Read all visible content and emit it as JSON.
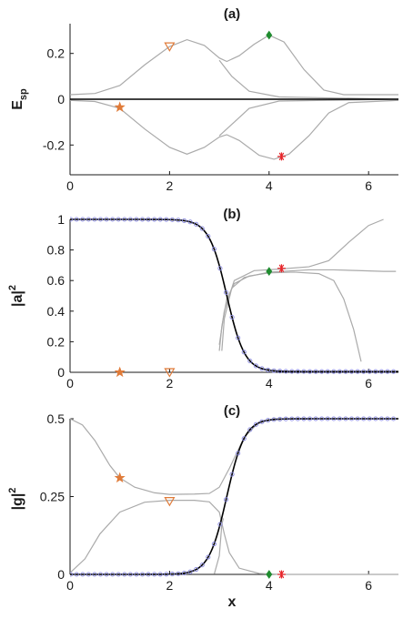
{
  "chart_data": [
    {
      "panel": "a",
      "type": "line",
      "title": "(a)",
      "xlabel": "",
      "ylabel": "E_sp",
      "ylabel_main": "E",
      "ylabel_sub": "sp",
      "xlim": [
        0,
        6.6
      ],
      "ylim": [
        -0.33,
        0.33
      ],
      "xticks": [
        0,
        2,
        4,
        6
      ],
      "xtick_labels": [
        "0",
        "2",
        "4",
        "6"
      ],
      "yticks": [
        0.2,
        0,
        -0.2
      ],
      "ytick_labels": [
        "0.2",
        "0",
        "-0.2"
      ],
      "series": [
        {
          "color": "#aaaaaa",
          "width": 1.2,
          "points": [
            [
              0,
              0.02
            ],
            [
              0.5,
              0.025
            ],
            [
              1,
              0.06
            ],
            [
              1.5,
              0.15
            ],
            [
              2,
              0.23
            ],
            [
              2.35,
              0.26
            ],
            [
              2.7,
              0.235
            ],
            [
              3,
              0.18
            ],
            [
              3.15,
              0.165
            ],
            [
              3.4,
              0.19
            ],
            [
              3.7,
              0.24
            ],
            [
              4,
              0.28
            ],
            [
              4.3,
              0.25
            ],
            [
              4.7,
              0.13
            ],
            [
              5.1,
              0.04
            ],
            [
              5.5,
              0.02
            ],
            [
              6.6,
              0.02
            ]
          ]
        },
        {
          "color": "#aaaaaa",
          "width": 1.2,
          "points": [
            [
              0,
              -0.005
            ],
            [
              0.5,
              -0.01
            ],
            [
              1,
              -0.04
            ],
            [
              1.5,
              -0.13
            ],
            [
              2,
              -0.21
            ],
            [
              2.35,
              -0.24
            ],
            [
              2.7,
              -0.21
            ],
            [
              3,
              -0.165
            ],
            [
              3.15,
              -0.155
            ],
            [
              3.4,
              -0.18
            ],
            [
              3.8,
              -0.245
            ],
            [
              4.1,
              -0.262
            ],
            [
              4.4,
              -0.24
            ],
            [
              4.8,
              -0.16
            ],
            [
              5.2,
              -0.06
            ],
            [
              5.6,
              -0.015
            ],
            [
              6.6,
              -0.005
            ]
          ]
        },
        {
          "color": "#aaaaaa",
          "width": 1.2,
          "points": [
            [
              3,
              -0.16
            ],
            [
              3.3,
              -0.1
            ],
            [
              3.6,
              -0.04
            ],
            [
              4.2,
              -0.008
            ],
            [
              6.6,
              0
            ]
          ]
        },
        {
          "color": "#aaaaaa",
          "width": 1.2,
          "points": [
            [
              3,
              0.17
            ],
            [
              3.25,
              0.1
            ],
            [
              3.6,
              0.035
            ],
            [
              4.2,
              0.01
            ],
            [
              6.6,
              0
            ]
          ]
        },
        {
          "color": "#000000",
          "width": 1.6,
          "points": [
            [
              0,
              0
            ],
            [
              6.6,
              0
            ]
          ]
        }
      ],
      "markers": [
        {
          "symbol": "star",
          "x": 1,
          "y": -0.035,
          "color": "#e07b39",
          "size": 10
        },
        {
          "symbol": "triangle-down",
          "x": 2,
          "y": 0.23,
          "color": "#e07b39",
          "size": 10
        },
        {
          "symbol": "diamond",
          "x": 4,
          "y": 0.28,
          "color": "#1f8c2f",
          "size": 8
        },
        {
          "symbol": "asterisk",
          "x": 4.25,
          "y": -0.25,
          "color": "#e8252a",
          "size": 9
        }
      ]
    },
    {
      "panel": "b",
      "type": "line",
      "title": "(b)",
      "xlabel": "",
      "ylabel": "|a|^2",
      "ylabel_main": "|a|",
      "ylabel_sup": "2",
      "xlim": [
        0,
        6.6
      ],
      "ylim": [
        0,
        1
      ],
      "xticks": [
        0,
        2,
        4,
        6
      ],
      "xtick_labels": [
        "0",
        "2",
        "4",
        "6"
      ],
      "yticks": [
        1,
        0.8,
        0.6,
        0.4,
        0.2,
        0
      ],
      "ytick_labels": [
        "1",
        "0.8",
        "0.6",
        "0.4",
        "0.2",
        "0"
      ],
      "sigmoid": {
        "type": "decreasing",
        "center": 3.15,
        "scale": 0.18,
        "low": 0.005,
        "high": 1.0
      },
      "series": [
        {
          "color": "#aaaaaa",
          "width": 1.2,
          "points": [
            [
              3,
              0.14
            ],
            [
              3.05,
              0.3
            ],
            [
              3.15,
              0.48
            ],
            [
              3.3,
              0.58
            ],
            [
              3.6,
              0.63
            ],
            [
              4,
              0.65
            ],
            [
              4.5,
              0.655
            ],
            [
              5,
              0.645
            ],
            [
              5.3,
              0.6
            ],
            [
              5.5,
              0.48
            ],
            [
              5.7,
              0.28
            ],
            [
              5.85,
              0.07
            ]
          ]
        },
        {
          "color": "#aaaaaa",
          "width": 1.2,
          "points": [
            [
              3,
              0.18
            ],
            [
              3.1,
              0.4
            ],
            [
              3.3,
              0.6
            ],
            [
              3.7,
              0.665
            ],
            [
              4.2,
              0.675
            ],
            [
              4.8,
              0.69
            ],
            [
              5.2,
              0.73
            ],
            [
              5.6,
              0.85
            ],
            [
              6,
              0.96
            ],
            [
              6.3,
              1.0
            ]
          ]
        },
        {
          "color": "#aaaaaa",
          "width": 1.2,
          "points": [
            [
              3.05,
              0.14
            ],
            [
              3.1,
              0.35
            ],
            [
              3.25,
              0.55
            ],
            [
              3.5,
              0.62
            ],
            [
              4,
              0.655
            ],
            [
              4.8,
              0.67
            ],
            [
              5.3,
              0.67
            ],
            [
              5.8,
              0.665
            ],
            [
              6.3,
              0.66
            ],
            [
              6.55,
              0.66
            ]
          ]
        }
      ],
      "circles_color": "#8a8ae0",
      "curve_color": "#000000",
      "markers": [
        {
          "symbol": "star",
          "x": 1,
          "y": 0.0,
          "color": "#e07b39",
          "size": 10
        },
        {
          "symbol": "triangle-down",
          "x": 2,
          "y": 0.0,
          "color": "#e07b39",
          "size": 10
        },
        {
          "symbol": "diamond",
          "x": 4,
          "y": 0.66,
          "color": "#1f8c2f",
          "size": 8
        },
        {
          "symbol": "asterisk",
          "x": 4.25,
          "y": 0.68,
          "color": "#e8252a",
          "size": 9
        }
      ]
    },
    {
      "panel": "c",
      "type": "line",
      "title": "(c)",
      "xlabel": "x",
      "ylabel": "|g|^2",
      "ylabel_main": "|g|",
      "ylabel_sup": "2",
      "xlim": [
        0,
        6.6
      ],
      "ylim": [
        0,
        0.5
      ],
      "xticks": [
        0,
        2,
        4,
        6
      ],
      "xtick_labels": [
        "0",
        "2",
        "4",
        "6"
      ],
      "yticks": [
        0.5,
        0.25,
        0
      ],
      "ytick_labels": [
        "0.5",
        "0.25",
        "0"
      ],
      "sigmoid": {
        "type": "increasing",
        "center": 3.15,
        "scale": 0.18,
        "low": 0.0,
        "high": 0.5
      },
      "series": [
        {
          "color": "#aaaaaa",
          "width": 1.2,
          "points": [
            [
              0,
              0.5
            ],
            [
              0.25,
              0.48
            ],
            [
              0.5,
              0.43
            ],
            [
              0.8,
              0.35
            ],
            [
              1,
              0.31
            ],
            [
              1.3,
              0.28
            ],
            [
              1.7,
              0.262
            ],
            [
              2,
              0.257
            ],
            [
              2.5,
              0.258
            ],
            [
              2.8,
              0.26
            ],
            [
              3,
              0.28
            ],
            [
              3.2,
              0.34
            ],
            [
              3.5,
              0.44
            ],
            [
              3.8,
              0.49
            ],
            [
              4.1,
              0.5
            ],
            [
              6.6,
              0.5
            ]
          ]
        },
        {
          "color": "#aaaaaa",
          "width": 1.2,
          "points": [
            [
              0,
              0.005
            ],
            [
              0.3,
              0.05
            ],
            [
              0.6,
              0.13
            ],
            [
              1,
              0.2
            ],
            [
              1.5,
              0.232
            ],
            [
              2,
              0.238
            ],
            [
              2.5,
              0.238
            ],
            [
              2.8,
              0.233
            ],
            [
              3,
              0.2
            ],
            [
              3.1,
              0.13
            ],
            [
              3.2,
              0.07
            ],
            [
              3.4,
              0.02
            ],
            [
              3.8,
              0.003
            ],
            [
              4.2,
              0
            ],
            [
              6.6,
              0
            ]
          ]
        },
        {
          "color": "#aaaaaa",
          "width": 1.2,
          "points": [
            [
              2.9,
              0.002
            ],
            [
              3,
              0.06
            ],
            [
              3.05,
              0.16
            ],
            [
              3.08,
              0.18
            ]
          ]
        }
      ],
      "circles_color": "#8a8ae0",
      "curve_color": "#000000",
      "markers": [
        {
          "symbol": "star",
          "x": 1,
          "y": 0.31,
          "color": "#e07b39",
          "size": 10
        },
        {
          "symbol": "triangle-down",
          "x": 2,
          "y": 0.235,
          "color": "#e07b39",
          "size": 10
        },
        {
          "symbol": "diamond",
          "x": 4,
          "y": 0.0,
          "color": "#1f8c2f",
          "size": 8
        },
        {
          "symbol": "asterisk",
          "x": 4.25,
          "y": 0.0,
          "color": "#e8252a",
          "size": 9
        }
      ]
    }
  ]
}
